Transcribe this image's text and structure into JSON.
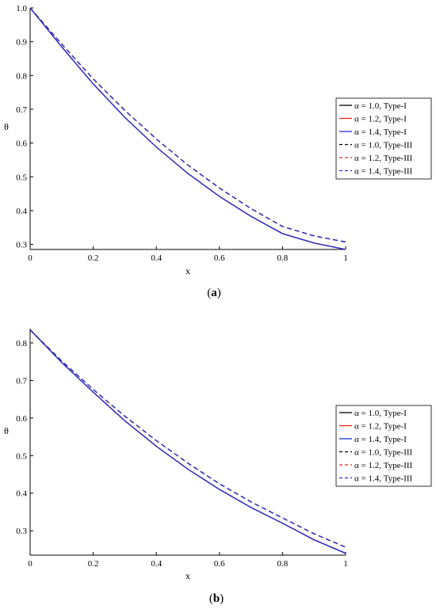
{
  "chart_data": [
    {
      "type": "line",
      "caption_open": "(",
      "caption_letter": "a",
      "caption_close": ")",
      "xlabel": "x",
      "ylabel": "θ",
      "xlim": [
        0,
        1
      ],
      "ylim": [
        0.285,
        1.0
      ],
      "xticks": [
        0,
        0.2,
        0.4,
        0.6,
        0.8,
        1
      ],
      "xtick_labels": [
        "0",
        "0.2",
        "0.4",
        "0.6",
        "0.8",
        "1"
      ],
      "yticks": [
        0.3,
        0.4,
        0.5,
        0.6,
        0.7,
        0.8,
        0.9,
        1.0
      ],
      "ytick_labels": [
        "0.3",
        "0.4",
        "0.5",
        "0.6",
        "0.7",
        "0.8",
        "0.9",
        "1.0"
      ],
      "grid": false,
      "legend_position": "right",
      "x": [
        0,
        0.1,
        0.2,
        0.3,
        0.4,
        0.5,
        0.6,
        0.7,
        0.8,
        0.9,
        1.0
      ],
      "series": [
        {
          "name": "α = 1.0, Type-I",
          "color": "#000000",
          "dash": "solid",
          "values": [
            1.0,
            0.885,
            0.775,
            0.676,
            0.588,
            0.51,
            0.442,
            0.383,
            0.332,
            0.304,
            0.285
          ]
        },
        {
          "name": "α = 1.2, Type-I",
          "color": "#e8251c",
          "dash": "solid",
          "values": [
            1.0,
            0.885,
            0.775,
            0.676,
            0.588,
            0.51,
            0.442,
            0.383,
            0.332,
            0.304,
            0.285
          ]
        },
        {
          "name": "α = 1.4, Type-I",
          "color": "#1f2fd6",
          "dash": "solid",
          "values": [
            1.0,
            0.885,
            0.775,
            0.676,
            0.588,
            0.51,
            0.442,
            0.383,
            0.332,
            0.304,
            0.285
          ]
        },
        {
          "name": "α = 1.0, Type-III",
          "color": "#000000",
          "dash": "dashed",
          "values": [
            1.0,
            0.893,
            0.79,
            0.697,
            0.612,
            0.535,
            0.467,
            0.406,
            0.353,
            0.325,
            0.307
          ]
        },
        {
          "name": "α = 1.2, Type-III",
          "color": "#e8251c",
          "dash": "dashed",
          "values": [
            1.0,
            0.893,
            0.79,
            0.697,
            0.612,
            0.535,
            0.467,
            0.406,
            0.353,
            0.325,
            0.307
          ]
        },
        {
          "name": "α = 1.4, Type-III",
          "color": "#1f2fd6",
          "dash": "dashed",
          "values": [
            1.0,
            0.893,
            0.79,
            0.697,
            0.612,
            0.535,
            0.467,
            0.406,
            0.353,
            0.325,
            0.307
          ]
        }
      ]
    },
    {
      "type": "line",
      "caption_open": "(",
      "caption_letter": "b",
      "caption_close": ")",
      "xlabel": "x",
      "ylabel": "θ",
      "xlim": [
        0,
        1
      ],
      "ylim": [
        0.235,
        0.838
      ],
      "xticks": [
        0,
        0.2,
        0.4,
        0.6,
        0.8,
        1
      ],
      "xtick_labels": [
        "0",
        "0.2",
        "0.4",
        "0.6",
        "0.8",
        "1"
      ],
      "yticks": [
        0.3,
        0.4,
        0.5,
        0.6,
        0.7,
        0.8
      ],
      "ytick_labels": [
        "0.3",
        "0.4",
        "0.5",
        "0.6",
        "0.7",
        "0.8"
      ],
      "grid": false,
      "legend_position": "right",
      "x": [
        0,
        0.1,
        0.2,
        0.3,
        0.4,
        0.5,
        0.6,
        0.7,
        0.8,
        0.9,
        1.0
      ],
      "series": [
        {
          "name": "α = 1.0, Type-I",
          "color": "#000000",
          "dash": "solid",
          "values": [
            0.835,
            0.748,
            0.669,
            0.593,
            0.525,
            0.464,
            0.41,
            0.362,
            0.32,
            0.276,
            0.24
          ]
        },
        {
          "name": "α = 1.2, Type-I",
          "color": "#e8251c",
          "dash": "solid",
          "values": [
            0.835,
            0.748,
            0.669,
            0.593,
            0.525,
            0.464,
            0.41,
            0.362,
            0.32,
            0.276,
            0.24
          ]
        },
        {
          "name": "α = 1.4, Type-I",
          "color": "#1f2fd6",
          "dash": "solid",
          "values": [
            0.835,
            0.748,
            0.669,
            0.593,
            0.525,
            0.464,
            0.41,
            0.362,
            0.32,
            0.276,
            0.24
          ]
        },
        {
          "name": "α = 1.0, Type-III",
          "color": "#000000",
          "dash": "dashed",
          "values": [
            0.835,
            0.752,
            0.676,
            0.605,
            0.54,
            0.48,
            0.425,
            0.377,
            0.334,
            0.292,
            0.256
          ]
        },
        {
          "name": "α = 1.2, Type-III",
          "color": "#e8251c",
          "dash": "dashed",
          "values": [
            0.835,
            0.752,
            0.676,
            0.605,
            0.54,
            0.48,
            0.425,
            0.377,
            0.334,
            0.292,
            0.256
          ]
        },
        {
          "name": "α = 1.4, Type-III",
          "color": "#1f2fd6",
          "dash": "dashed",
          "values": [
            0.835,
            0.752,
            0.676,
            0.605,
            0.54,
            0.48,
            0.425,
            0.377,
            0.334,
            0.292,
            0.256
          ]
        }
      ]
    }
  ]
}
